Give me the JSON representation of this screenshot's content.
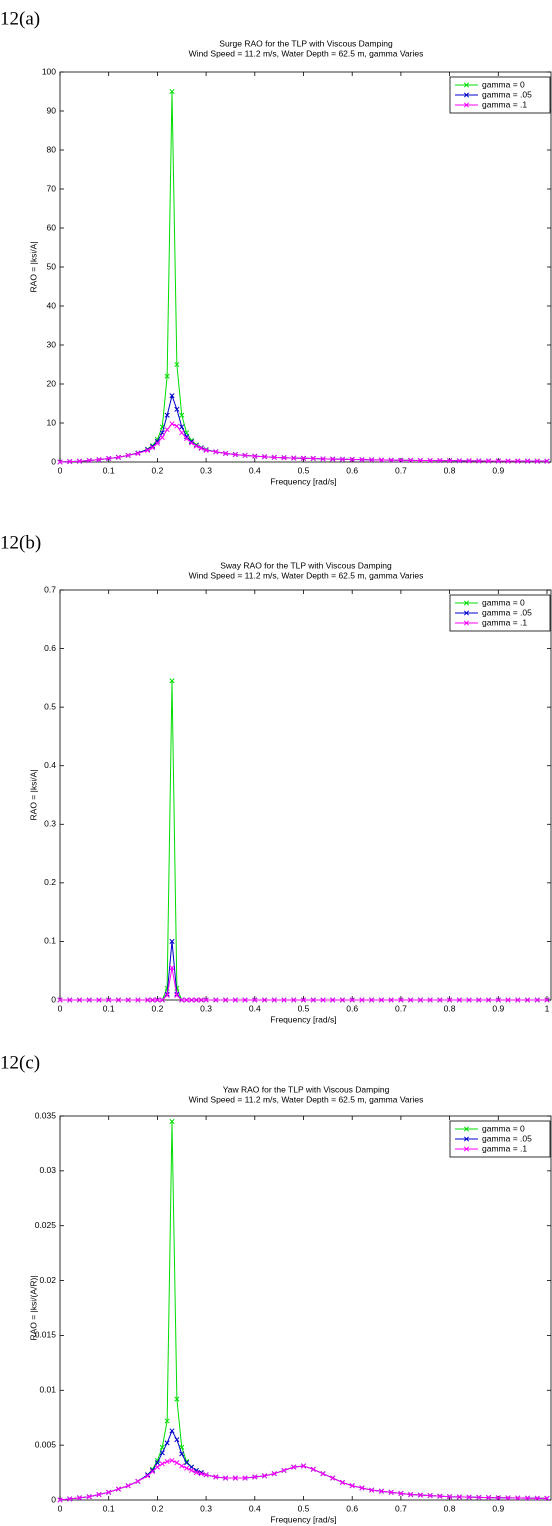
{
  "labels": [
    "12(a)",
    "12(b)",
    "12(c)"
  ],
  "chart_data": [
    {
      "type": "line",
      "title": "Surge RAO for the TLP with Viscous Damping",
      "subtitle": "Wind Speed = 11.2 m/s, Water Depth = 62.5 m, gamma Varies",
      "xlabel": "Frequency [rad/s]",
      "ylabel": "RAO = |ksi/A|",
      "grid": false,
      "legend": "upper right",
      "xlim": [
        0,
        1
      ],
      "xticks": [
        0,
        0.1,
        0.2,
        0.3,
        0.4,
        0.5,
        0.6,
        0.7,
        0.8,
        0.9
      ],
      "ylim": [
        0,
        100
      ],
      "yticks": [
        0,
        10,
        20,
        30,
        40,
        50,
        60,
        70,
        80,
        90,
        100
      ],
      "x": [
        0,
        0.02,
        0.04,
        0.06,
        0.08,
        0.1,
        0.12,
        0.14,
        0.16,
        0.18,
        0.19,
        0.2,
        0.21,
        0.22,
        0.23,
        0.24,
        0.25,
        0.26,
        0.27,
        0.28,
        0.29,
        0.3,
        0.32,
        0.34,
        0.36,
        0.38,
        0.4,
        0.42,
        0.44,
        0.46,
        0.48,
        0.5,
        0.52,
        0.54,
        0.56,
        0.58,
        0.6,
        0.62,
        0.64,
        0.66,
        0.68,
        0.7,
        0.72,
        0.74,
        0.76,
        0.78,
        0.8,
        0.82,
        0.84,
        0.86,
        0.88,
        0.9,
        0.92,
        0.94,
        0.96,
        0.98,
        1
      ],
      "series": [
        {
          "name": "gamma = 0",
          "color": "#00dd00",
          "values": [
            0,
            0.1,
            0.2,
            0.4,
            0.6,
            0.9,
            1.2,
            1.7,
            2.3,
            3.3,
            4.2,
            5.8,
            9,
            22,
            95,
            25,
            12,
            7.5,
            5.5,
            4.4,
            3.7,
            3.2,
            2.6,
            2.2,
            1.9,
            1.7,
            1.5,
            1.35,
            1.2,
            1.1,
            1.0,
            0.95,
            0.9,
            0.8,
            0.75,
            0.7,
            0.65,
            0.6,
            0.55,
            0.5,
            0.48,
            0.45,
            0.42,
            0.4,
            0.38,
            0.36,
            0.34,
            0.32,
            0.3,
            0.28,
            0.27,
            0.26,
            0.25,
            0.24,
            0.23,
            0.22,
            0.21
          ]
        },
        {
          "name": "gamma = .05",
          "color": "#0000cc",
          "values": [
            0,
            0.1,
            0.2,
            0.4,
            0.6,
            0.9,
            1.2,
            1.7,
            2.3,
            3.2,
            4,
            5.3,
            7.5,
            12,
            17,
            13.5,
            9,
            6.5,
            5.2,
            4.2,
            3.6,
            3.1,
            2.6,
            2.2,
            1.9,
            1.7,
            1.5,
            1.35,
            1.2,
            1.1,
            1.0,
            0.95,
            0.9,
            0.8,
            0.75,
            0.7,
            0.65,
            0.6,
            0.55,
            0.5,
            0.48,
            0.45,
            0.42,
            0.4,
            0.38,
            0.36,
            0.34,
            0.32,
            0.3,
            0.28,
            0.27,
            0.26,
            0.25,
            0.24,
            0.23,
            0.22,
            0.21
          ]
        },
        {
          "name": "gamma = .1",
          "color": "#ff00ff",
          "values": [
            0,
            0.1,
            0.2,
            0.4,
            0.6,
            0.9,
            1.2,
            1.7,
            2.2,
            3,
            3.7,
            4.8,
            6.3,
            8.3,
            9.8,
            9.2,
            7.5,
            6,
            4.9,
            4.1,
            3.5,
            3,
            2.6,
            2.2,
            1.9,
            1.7,
            1.5,
            1.35,
            1.2,
            1.1,
            1.0,
            0.95,
            0.9,
            0.8,
            0.75,
            0.7,
            0.65,
            0.6,
            0.55,
            0.5,
            0.48,
            0.45,
            0.42,
            0.4,
            0.38,
            0.36,
            0.34,
            0.32,
            0.3,
            0.28,
            0.27,
            0.26,
            0.25,
            0.24,
            0.23,
            0.22,
            0.21
          ]
        }
      ]
    },
    {
      "type": "line",
      "title": "Sway RAO for the TLP with Viscous Damping",
      "subtitle": "Wind Speed = 11.2 m/s, Water Depth = 62.5 m, gamma Varies",
      "xlabel": "Frequency [rad/s]",
      "ylabel": "RAO = |ksi/A|",
      "grid": false,
      "legend": "upper right",
      "xlim": [
        0,
        1
      ],
      "xticks": [
        0,
        0.1,
        0.2,
        0.3,
        0.4,
        0.5,
        0.6,
        0.7,
        0.8,
        0.9,
        1
      ],
      "ylim": [
        0,
        0.7
      ],
      "yticks": [
        0,
        0.1,
        0.2,
        0.3,
        0.4,
        0.5,
        0.6,
        0.7
      ],
      "x": [
        0,
        0.02,
        0.04,
        0.06,
        0.08,
        0.1,
        0.12,
        0.14,
        0.16,
        0.18,
        0.19,
        0.2,
        0.21,
        0.22,
        0.23,
        0.24,
        0.25,
        0.26,
        0.27,
        0.28,
        0.29,
        0.3,
        0.32,
        0.34,
        0.36,
        0.38,
        0.4,
        0.42,
        0.44,
        0.46,
        0.48,
        0.5,
        0.52,
        0.54,
        0.56,
        0.58,
        0.6,
        0.62,
        0.64,
        0.66,
        0.68,
        0.7,
        0.72,
        0.74,
        0.76,
        0.78,
        0.8,
        0.82,
        0.84,
        0.86,
        0.88,
        0.9,
        0.92,
        0.94,
        0.96,
        0.98,
        1
      ],
      "series": [
        {
          "name": "gamma = 0",
          "color": "#00dd00",
          "values": [
            0,
            0,
            0,
            0,
            0,
            0,
            0,
            0,
            0,
            0,
            0,
            0,
            0,
            0.02,
            0.545,
            0.02,
            0,
            0,
            0,
            0,
            0,
            0,
            0,
            0,
            0,
            0,
            0,
            0,
            0,
            0,
            0,
            0,
            0,
            0,
            0,
            0,
            0,
            0,
            0,
            0,
            0,
            0,
            0,
            0,
            0,
            0,
            0,
            0,
            0,
            0,
            0,
            0,
            0,
            0,
            0,
            0,
            0
          ]
        },
        {
          "name": "gamma = .05",
          "color": "#0000cc",
          "values": [
            0,
            0,
            0,
            0,
            0,
            0,
            0,
            0,
            0,
            0,
            0,
            0,
            0,
            0.01,
            0.1,
            0.01,
            0,
            0,
            0,
            0,
            0,
            0,
            0,
            0,
            0,
            0,
            0,
            0,
            0,
            0,
            0,
            0,
            0,
            0,
            0,
            0,
            0,
            0,
            0,
            0,
            0,
            0,
            0,
            0,
            0,
            0,
            0,
            0,
            0,
            0,
            0,
            0,
            0,
            0,
            0,
            0,
            0
          ]
        },
        {
          "name": "gamma = .1",
          "color": "#ff00ff",
          "values": [
            0,
            0,
            0,
            0,
            0,
            0,
            0,
            0,
            0,
            0,
            0,
            0,
            0,
            0.008,
            0.055,
            0.008,
            0,
            0,
            0,
            0,
            0,
            0,
            0,
            0,
            0,
            0,
            0,
            0,
            0,
            0,
            0,
            0,
            0,
            0,
            0,
            0,
            0,
            0,
            0,
            0,
            0,
            0,
            0,
            0,
            0,
            0,
            0,
            0,
            0,
            0,
            0,
            0,
            0,
            0,
            0,
            0,
            0
          ]
        }
      ]
    },
    {
      "type": "line",
      "title": "Yaw RAO for the TLP with Viscous Damping",
      "subtitle": "Wind Speed = 11.2 m/s, Water Depth = 62.5 m, gamma Varies",
      "xlabel": "Frequency [rad/s]",
      "ylabel": "RAO = |ksi/(A/R)|",
      "grid": false,
      "legend": "upper right",
      "xlim": [
        0,
        1
      ],
      "xticks": [
        0,
        0.1,
        0.2,
        0.3,
        0.4,
        0.5,
        0.6,
        0.7,
        0.8,
        0.9
      ],
      "ylim": [
        0,
        0.035
      ],
      "yticks": [
        0,
        0.005,
        0.01,
        0.015,
        0.02,
        0.025,
        0.03,
        0.035
      ],
      "x": [
        0,
        0.02,
        0.04,
        0.06,
        0.08,
        0.1,
        0.12,
        0.14,
        0.16,
        0.18,
        0.19,
        0.2,
        0.21,
        0.22,
        0.23,
        0.24,
        0.25,
        0.26,
        0.27,
        0.28,
        0.29,
        0.3,
        0.32,
        0.34,
        0.36,
        0.38,
        0.4,
        0.42,
        0.44,
        0.46,
        0.48,
        0.5,
        0.52,
        0.54,
        0.56,
        0.58,
        0.6,
        0.62,
        0.64,
        0.66,
        0.68,
        0.7,
        0.72,
        0.74,
        0.76,
        0.78,
        0.8,
        0.82,
        0.84,
        0.86,
        0.88,
        0.9,
        0.92,
        0.94,
        0.96,
        0.98,
        1
      ],
      "series": [
        {
          "name": "gamma = 0",
          "color": "#00dd00",
          "values": [
            0,
            0.0001,
            0.0002,
            0.0003,
            0.0005,
            0.0007,
            0.001,
            0.0013,
            0.0017,
            0.0023,
            0.0028,
            0.0036,
            0.0048,
            0.0072,
            0.0345,
            0.0092,
            0.0048,
            0.0035,
            0.003,
            0.0027,
            0.0025,
            0.0023,
            0.0021,
            0.002,
            0.002,
            0.002,
            0.0021,
            0.0022,
            0.0024,
            0.0027,
            0.003,
            0.0031,
            0.0028,
            0.0024,
            0.002,
            0.0016,
            0.0013,
            0.0011,
            0.0009,
            0.0008,
            0.0007,
            0.0006,
            0.0005,
            0.00045,
            0.0004,
            0.00035,
            0.0003,
            0.00028,
            0.00026,
            0.00024,
            0.00022,
            0.0002,
            0.00019,
            0.00018,
            0.00017,
            0.00016,
            0.00015
          ]
        },
        {
          "name": "gamma = .05",
          "color": "#0000cc",
          "values": [
            0,
            0.0001,
            0.0002,
            0.0003,
            0.0005,
            0.0007,
            0.001,
            0.0013,
            0.0017,
            0.0023,
            0.0027,
            0.0034,
            0.0043,
            0.0052,
            0.0063,
            0.0055,
            0.0042,
            0.0034,
            0.003,
            0.0027,
            0.0025,
            0.0023,
            0.0021,
            0.002,
            0.002,
            0.002,
            0.0021,
            0.0022,
            0.0024,
            0.0027,
            0.003,
            0.0031,
            0.0028,
            0.0024,
            0.002,
            0.0016,
            0.0013,
            0.0011,
            0.0009,
            0.0008,
            0.0007,
            0.0006,
            0.0005,
            0.00045,
            0.0004,
            0.00035,
            0.0003,
            0.00028,
            0.00026,
            0.00024,
            0.00022,
            0.0002,
            0.00019,
            0.00018,
            0.00017,
            0.00016,
            0.00015
          ]
        },
        {
          "name": "gamma = .1",
          "color": "#ff00ff",
          "values": [
            0,
            0.0001,
            0.0002,
            0.0003,
            0.0005,
            0.0007,
            0.001,
            0.0013,
            0.0017,
            0.0022,
            0.0026,
            0.003,
            0.0033,
            0.0035,
            0.0036,
            0.0034,
            0.0031,
            0.0029,
            0.0027,
            0.0025,
            0.0024,
            0.0023,
            0.0021,
            0.002,
            0.002,
            0.002,
            0.0021,
            0.0022,
            0.0024,
            0.0027,
            0.003,
            0.0031,
            0.0028,
            0.0024,
            0.002,
            0.0016,
            0.0013,
            0.0011,
            0.0009,
            0.0008,
            0.0007,
            0.0006,
            0.0005,
            0.00045,
            0.0004,
            0.00035,
            0.0003,
            0.00028,
            0.00026,
            0.00024,
            0.00022,
            0.0002,
            0.00019,
            0.00018,
            0.00017,
            0.00016,
            0.00015
          ]
        }
      ]
    }
  ]
}
